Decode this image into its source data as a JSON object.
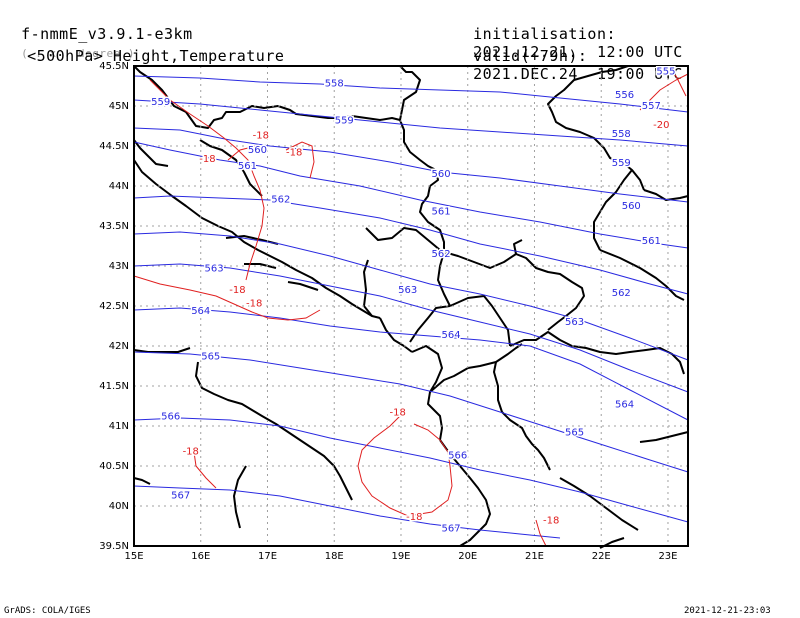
{
  "header": {
    "model": "f-nmmE_v3.9.1-e3km",
    "units": "( . x . degree )",
    "init_label": "initialisation:",
    "init_value": "2021.12.21.  12:00 UTC",
    "level_label": "<500hPa> Height,Temperature",
    "valid_label": "valid(+79h):",
    "valid_value": "2021.DEC.24  19:00 UTC"
  },
  "footer": {
    "credit": "GrADS: COLA/IGES",
    "timestamp": "2021-12-21-23:03"
  },
  "colors": {
    "height": "#2a2ae0",
    "temperature": "#e02020",
    "coast": "#000000",
    "grid": "#a0a0a0"
  },
  "axes": {
    "lon_ticks": [
      "15E",
      "16E",
      "17E",
      "18E",
      "19E",
      "20E",
      "21E",
      "22E",
      "23E"
    ],
    "lat_ticks": [
      "45.5N",
      "45N",
      "44.5N",
      "44N",
      "43.5N",
      "43N",
      "42.5N",
      "42N",
      "41.5N",
      "41N",
      "40.5N",
      "40N",
      "39.5N"
    ]
  },
  "height_labels": [
    {
      "text": "558",
      "lon": 18.0,
      "lat": 45.28
    },
    {
      "text": "559",
      "lon": 15.4,
      "lat": 45.05
    },
    {
      "text": "559",
      "lon": 18.15,
      "lat": 44.82
    },
    {
      "text": "560",
      "lon": 16.85,
      "lat": 44.45
    },
    {
      "text": "561",
      "lon": 16.7,
      "lat": 44.25
    },
    {
      "text": "560",
      "lon": 19.6,
      "lat": 44.15
    },
    {
      "text": "562",
      "lon": 17.2,
      "lat": 43.83
    },
    {
      "text": "561",
      "lon": 19.6,
      "lat": 43.68
    },
    {
      "text": "562",
      "lon": 19.6,
      "lat": 43.15
    },
    {
      "text": "563",
      "lon": 16.2,
      "lat": 42.97
    },
    {
      "text": "563",
      "lon": 19.1,
      "lat": 42.7
    },
    {
      "text": "564",
      "lon": 16.0,
      "lat": 42.44
    },
    {
      "text": "564",
      "lon": 19.75,
      "lat": 42.14
    },
    {
      "text": "565",
      "lon": 16.15,
      "lat": 41.87
    },
    {
      "text": "566",
      "lon": 15.55,
      "lat": 41.12
    },
    {
      "text": "566",
      "lon": 19.85,
      "lat": 40.63
    },
    {
      "text": "567",
      "lon": 15.7,
      "lat": 40.13
    },
    {
      "text": "567",
      "lon": 19.75,
      "lat": 39.72
    },
    {
      "text": "565",
      "lon": 21.6,
      "lat": 40.92
    },
    {
      "text": "564",
      "lon": 22.35,
      "lat": 41.27
    },
    {
      "text": "563",
      "lon": 21.6,
      "lat": 42.3
    },
    {
      "text": "562",
      "lon": 22.3,
      "lat": 42.66
    },
    {
      "text": "561",
      "lon": 22.75,
      "lat": 43.31
    },
    {
      "text": "560",
      "lon": 22.45,
      "lat": 43.75
    },
    {
      "text": "559",
      "lon": 22.3,
      "lat": 44.29
    },
    {
      "text": "558",
      "lon": 22.3,
      "lat": 44.65
    },
    {
      "text": "557",
      "lon": 22.75,
      "lat": 45.0
    },
    {
      "text": "556",
      "lon": 22.35,
      "lat": 45.14
    },
    {
      "text": "555",
      "lon": 22.97,
      "lat": 45.43
    }
  ],
  "temperature_labels": [
    {
      "text": "-18",
      "lon": 16.9,
      "lat": 44.63
    },
    {
      "text": "-18",
      "lon": 16.1,
      "lat": 44.34
    },
    {
      "text": "-18",
      "lon": 17.4,
      "lat": 44.42
    },
    {
      "text": "-18",
      "lon": 16.55,
      "lat": 42.7
    },
    {
      "text": "-18",
      "lon": 16.8,
      "lat": 42.53
    },
    {
      "text": "-20",
      "lon": 22.9,
      "lat": 44.76
    },
    {
      "text": "-18",
      "lon": 18.95,
      "lat": 41.17
    },
    {
      "text": "-18",
      "lon": 15.85,
      "lat": 40.68
    },
    {
      "text": "-18",
      "lon": 19.2,
      "lat": 39.86
    },
    {
      "text": "-18",
      "lon": 21.25,
      "lat": 39.82
    }
  ]
}
